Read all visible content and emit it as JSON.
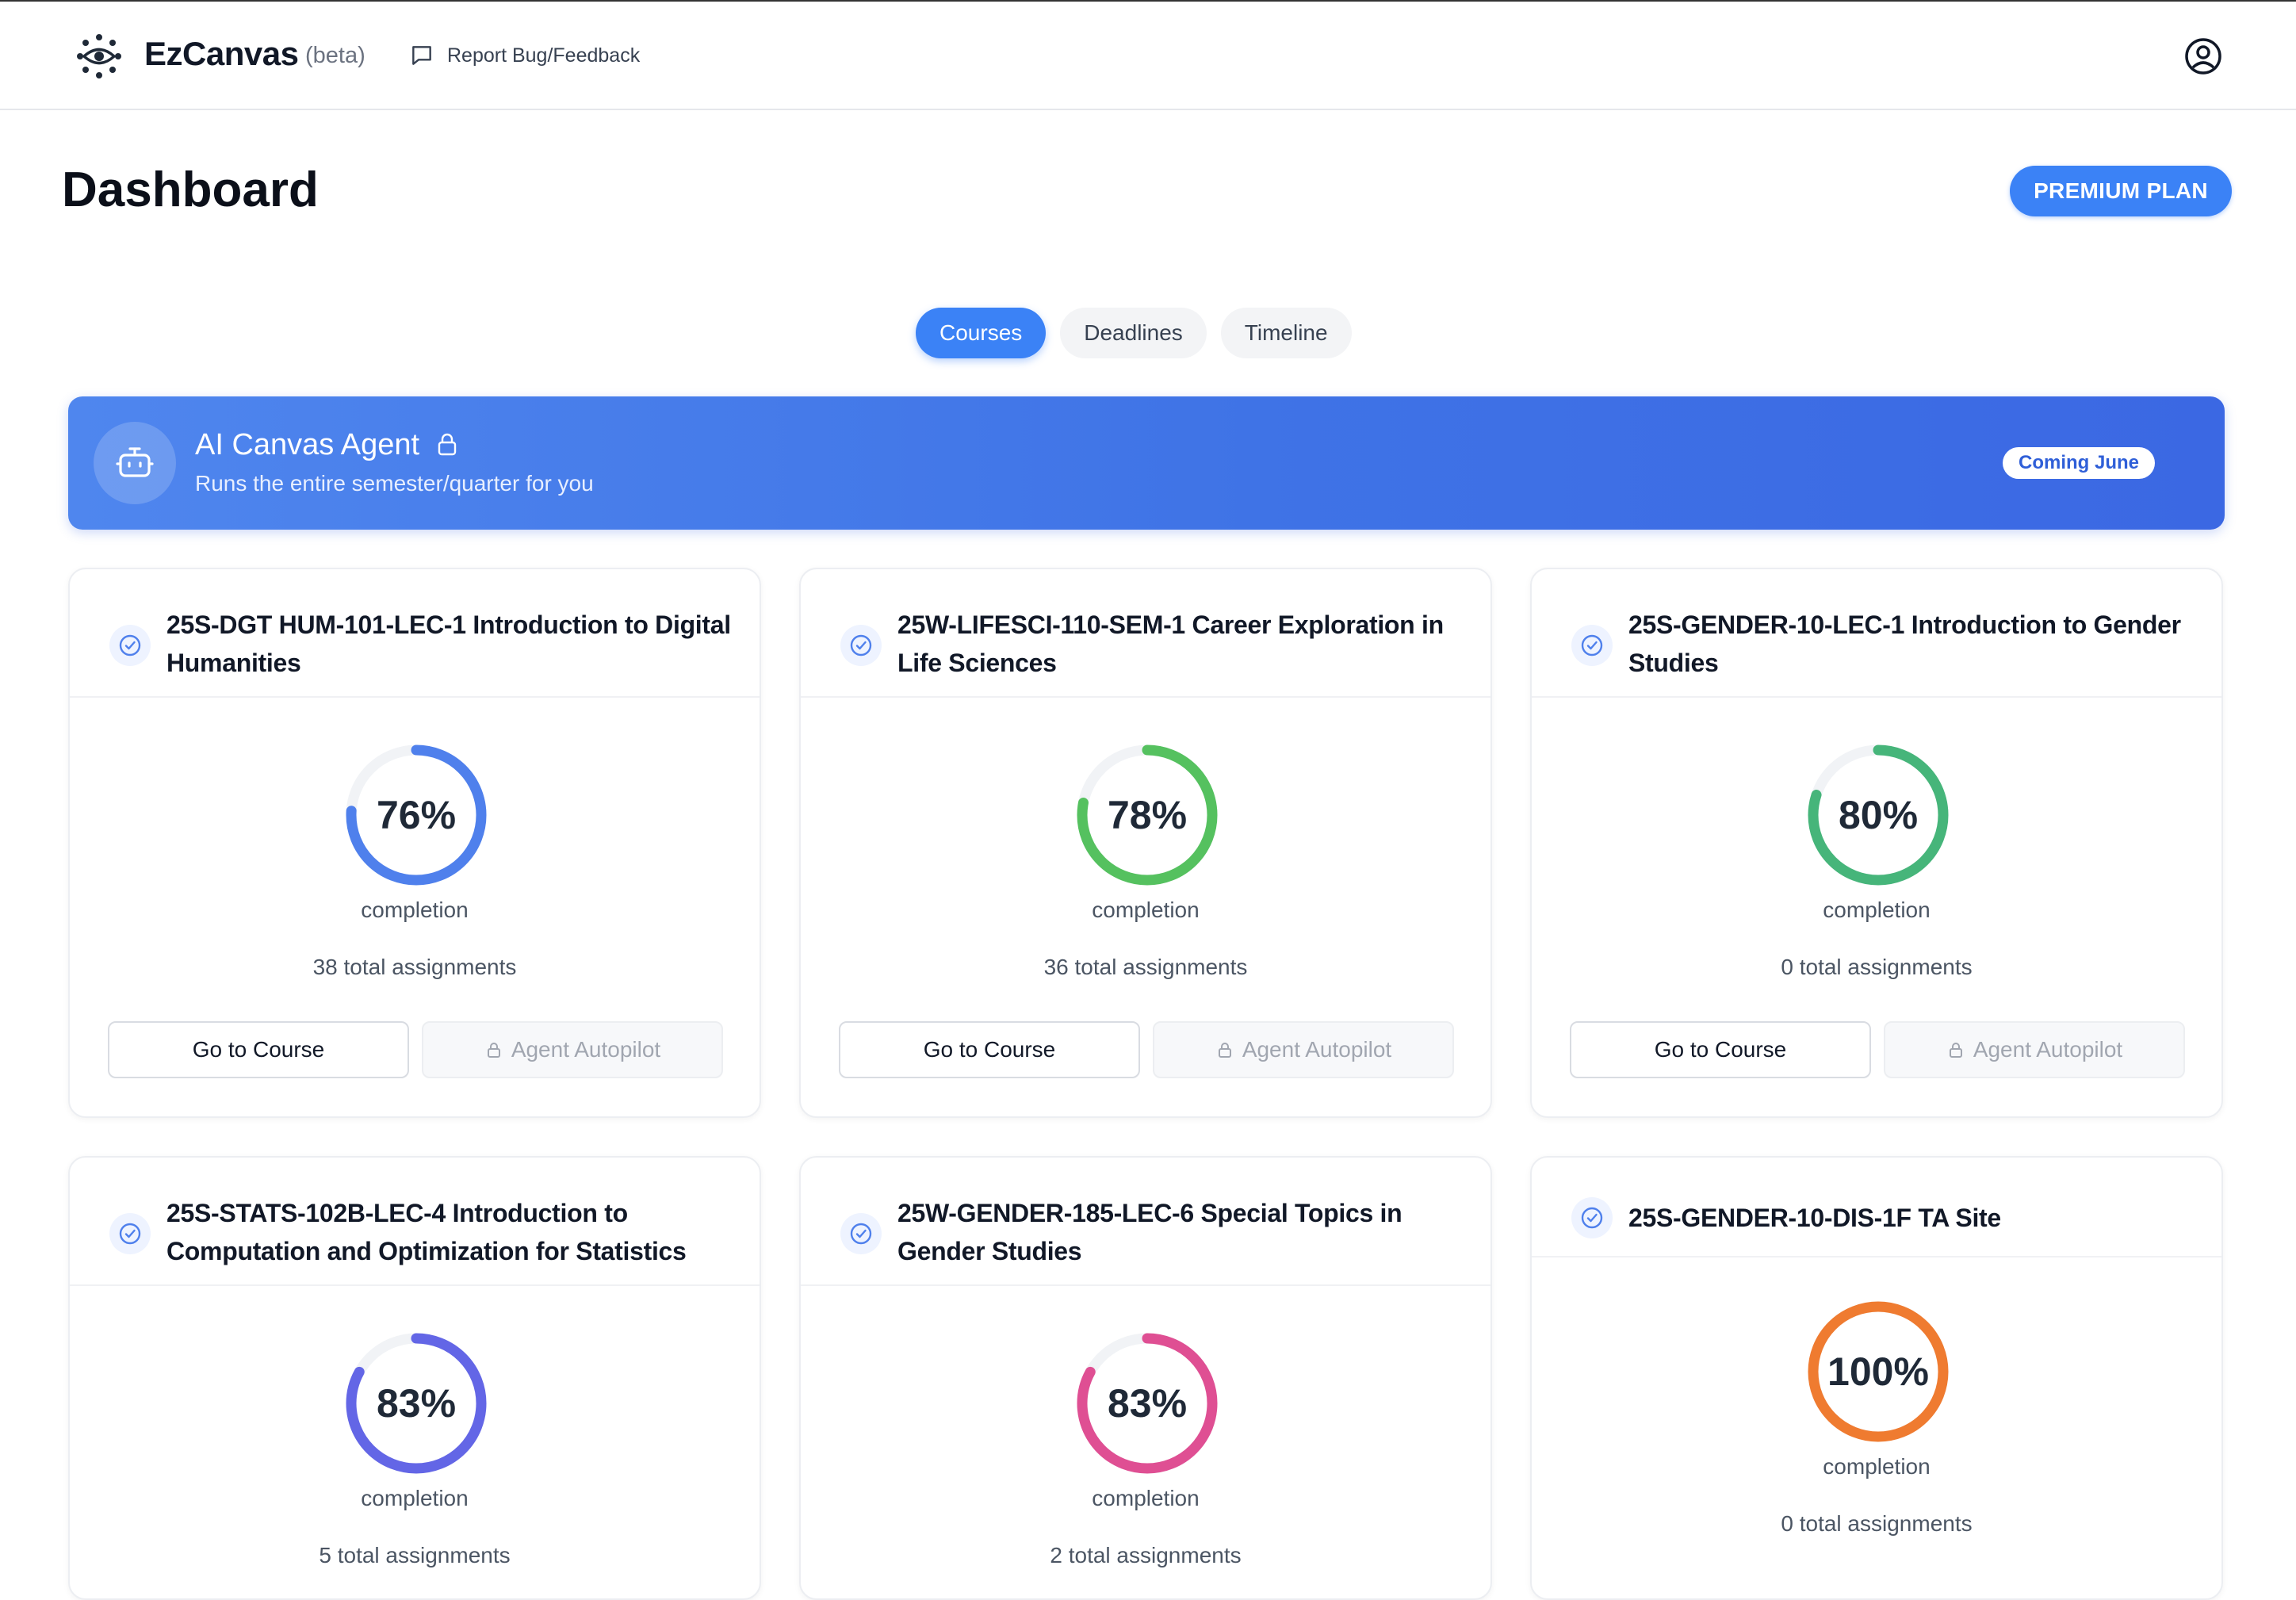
{
  "app": {
    "brand": "EzCanvas",
    "beta": "(beta)",
    "feedback_label": "Report Bug/Feedback",
    "icons": {
      "logo": "eye-icon",
      "feedback": "message-square-icon",
      "user": "user-circle-icon"
    }
  },
  "page": {
    "title": "Dashboard",
    "premium_label": "PREMIUM PLAN"
  },
  "tabs": [
    {
      "label": "Courses",
      "active": true
    },
    {
      "label": "Deadlines",
      "active": false
    },
    {
      "label": "Timeline",
      "active": false
    }
  ],
  "agent": {
    "title": "AI Canvas Agent",
    "subtitle": "Runs the entire semester/quarter for you",
    "badge": "Coming June",
    "icons": {
      "avatar": "robot-icon",
      "lock": "lock-icon",
      "help": "help-circle-icon"
    }
  },
  "labels": {
    "completion": "completion",
    "go_to_course": "Go to Course",
    "agent_autopilot": "Agent Autopilot"
  },
  "courses": [
    {
      "title": "25S-DGT HUM-101-LEC-1 Introduction to Digital Humanities",
      "percent": 76,
      "percent_label": "76%",
      "color": "#4f80ec",
      "assignments": "38 total assignments"
    },
    {
      "title": "25W-LIFESCI-110-SEM-1 Career Exploration in Life Sciences",
      "percent": 78,
      "percent_label": "78%",
      "color": "#55c15f",
      "assignments": "36 total assignments"
    },
    {
      "title": "25S-GENDER-10-LEC-1 Introduction to Gender Studies",
      "percent": 80,
      "percent_label": "80%",
      "color": "#46b57a",
      "assignments": "0 total assignments"
    },
    {
      "title": "25S-STATS-102B-LEC-4 Introduction to Computation and Optimization for Statistics",
      "percent": 83,
      "percent_label": "83%",
      "color": "#6366e6",
      "assignments": "5 total assignments"
    },
    {
      "title": "25W-GENDER-185-LEC-6 Special Topics in Gender Studies",
      "percent": 83,
      "percent_label": "83%",
      "color": "#df4f93",
      "assignments": "2 total assignments"
    },
    {
      "title": "25S-GENDER-10-DIS-1F TA Site",
      "percent": 100,
      "percent_label": "100%",
      "color": "#ef7b30",
      "assignments": "0 total assignments"
    }
  ]
}
